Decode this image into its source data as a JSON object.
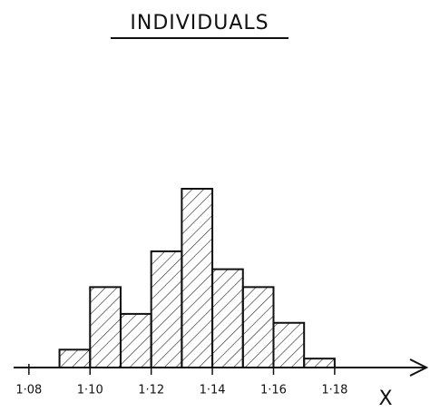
{
  "chart_data": {
    "type": "histogram",
    "title": "INDIVIDUALS",
    "x_label": "X",
    "bins": [
      1.09,
      1.1,
      1.11,
      1.12,
      1.13,
      1.14,
      1.15,
      1.16,
      1.17,
      1.18
    ],
    "values": [
      2,
      9,
      6,
      13,
      20,
      11,
      9,
      5,
      1
    ],
    "xlim": [
      1.075,
      1.21
    ],
    "xticks": [
      {
        "value": 1.08,
        "label": "1·08"
      },
      {
        "value": 1.1,
        "label": "1·10"
      },
      {
        "value": 1.12,
        "label": "1·12"
      },
      {
        "value": 1.14,
        "label": "1·14"
      },
      {
        "value": 1.16,
        "label": "1·16"
      },
      {
        "value": 1.18,
        "label": "1·18"
      }
    ],
    "ylim": [
      0,
      20
    ],
    "color": "#111111"
  }
}
